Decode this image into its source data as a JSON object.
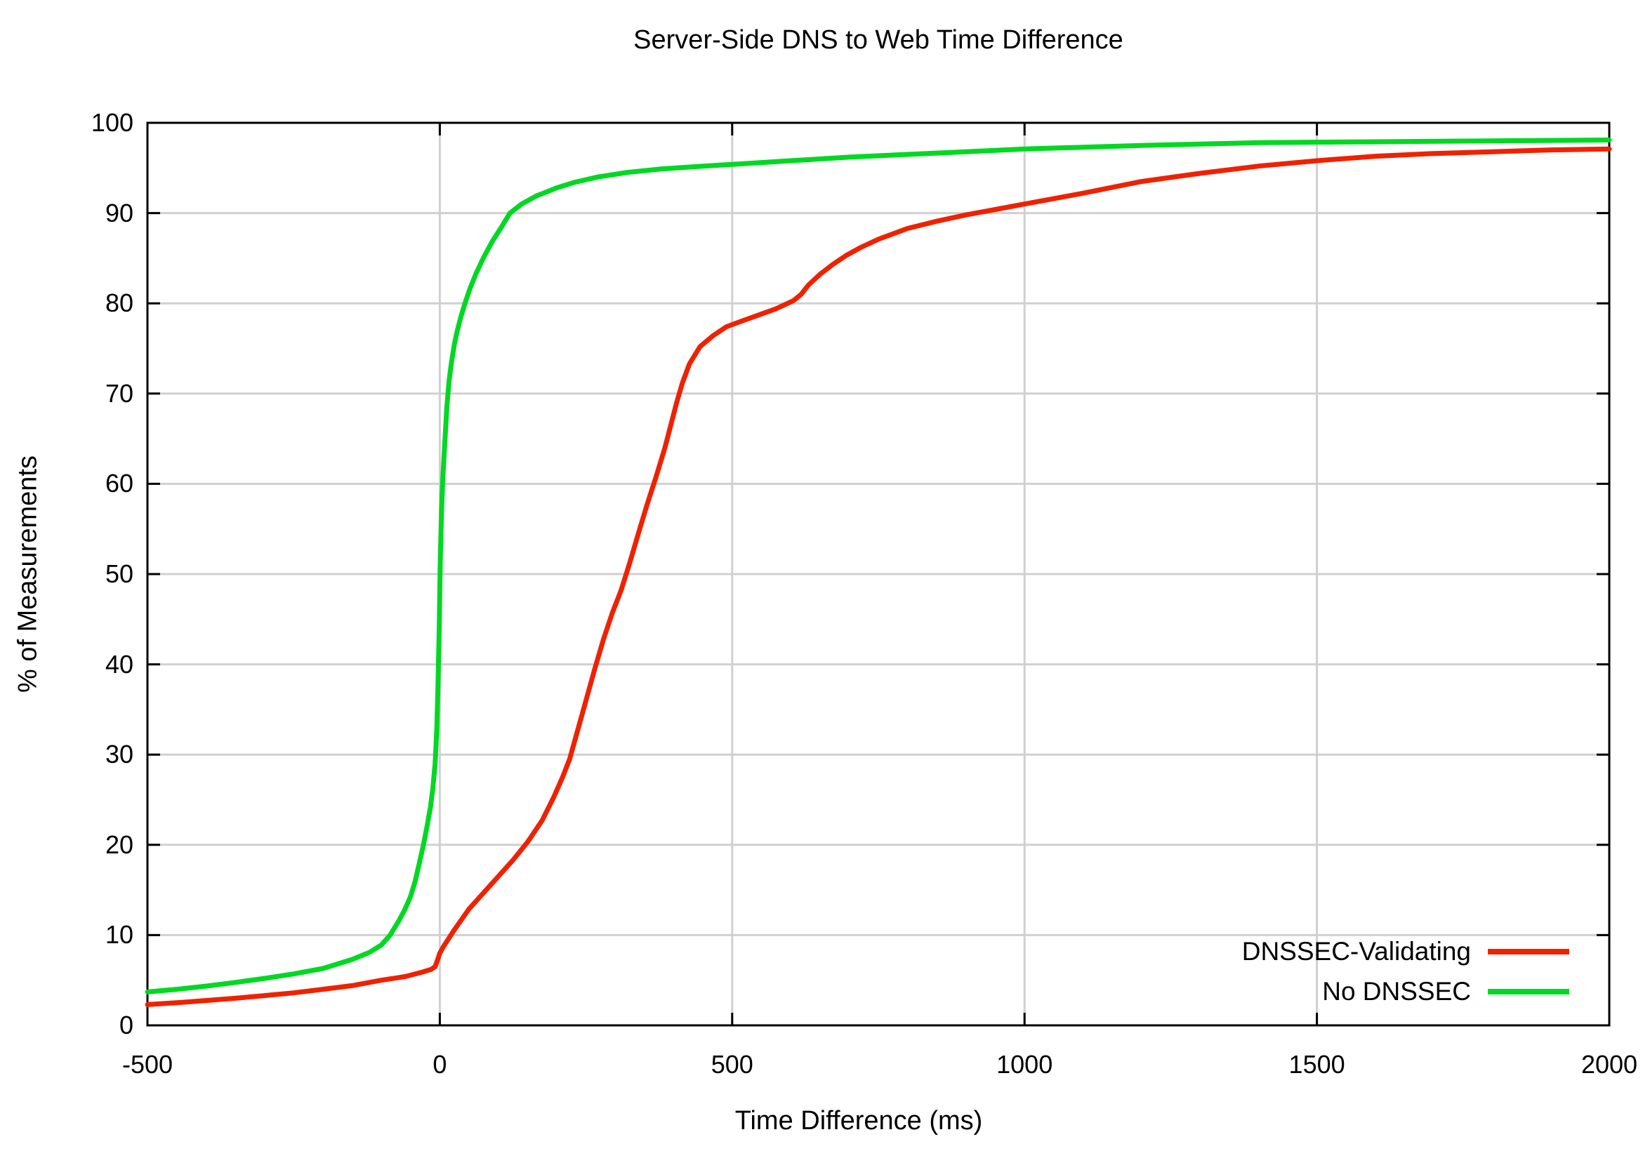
{
  "chart_data": {
    "type": "line",
    "title": "Server-Side DNS to Web Time Difference",
    "xlabel": "Time Difference (ms)",
    "ylabel": "% of Measurements",
    "xlim": [
      -500,
      2000
    ],
    "ylim": [
      0,
      100
    ],
    "x_ticks": [
      -500,
      0,
      500,
      1000,
      1500,
      2000
    ],
    "y_ticks": [
      0,
      10,
      20,
      30,
      40,
      50,
      60,
      70,
      80,
      90,
      100
    ],
    "grid": true,
    "legend_position": "inside-bottom-right",
    "colors": {
      "grid": "#d0d0d0",
      "axis": "#000000",
      "background": "#ffffff"
    },
    "series": [
      {
        "name": "DNSSEC-Validating",
        "color": "#ee2200",
        "points": [
          [
            -500,
            2.3
          ],
          [
            -450,
            2.5
          ],
          [
            -400,
            2.75
          ],
          [
            -350,
            3.0
          ],
          [
            -300,
            3.3
          ],
          [
            -250,
            3.6
          ],
          [
            -200,
            4.0
          ],
          [
            -150,
            4.4
          ],
          [
            -100,
            5.0
          ],
          [
            -60,
            5.4
          ],
          [
            -30,
            5.9
          ],
          [
            -15,
            6.2
          ],
          [
            -8,
            6.5
          ],
          [
            -3,
            7.4
          ],
          [
            0,
            8.0
          ],
          [
            6,
            8.7
          ],
          [
            15,
            9.6
          ],
          [
            25,
            10.6
          ],
          [
            50,
            12.9
          ],
          [
            75,
            14.7
          ],
          [
            100,
            16.5
          ],
          [
            125,
            18.3
          ],
          [
            150,
            20.3
          ],
          [
            175,
            22.7
          ],
          [
            195,
            25.3
          ],
          [
            210,
            27.5
          ],
          [
            222,
            29.5
          ],
          [
            235,
            32.5
          ],
          [
            250,
            36.0
          ],
          [
            265,
            39.5
          ],
          [
            280,
            42.8
          ],
          [
            295,
            45.7
          ],
          [
            310,
            48.2
          ],
          [
            325,
            51.3
          ],
          [
            340,
            54.6
          ],
          [
            355,
            57.8
          ],
          [
            370,
            60.8
          ],
          [
            385,
            64.0
          ],
          [
            395,
            66.5
          ],
          [
            405,
            69.0
          ],
          [
            415,
            71.2
          ],
          [
            427,
            73.3
          ],
          [
            445,
            75.2
          ],
          [
            467,
            76.4
          ],
          [
            490,
            77.4
          ],
          [
            515,
            78.0
          ],
          [
            545,
            78.7
          ],
          [
            575,
            79.4
          ],
          [
            605,
            80.3
          ],
          [
            618,
            81.0
          ],
          [
            630,
            82.0
          ],
          [
            650,
            83.2
          ],
          [
            672,
            84.3
          ],
          [
            695,
            85.3
          ],
          [
            720,
            86.2
          ],
          [
            750,
            87.1
          ],
          [
            800,
            88.3
          ],
          [
            850,
            89.1
          ],
          [
            900,
            89.8
          ],
          [
            950,
            90.4
          ],
          [
            1000,
            91.0
          ],
          [
            1100,
            92.2
          ],
          [
            1200,
            93.5
          ],
          [
            1300,
            94.4
          ],
          [
            1400,
            95.2
          ],
          [
            1500,
            95.8
          ],
          [
            1600,
            96.3
          ],
          [
            1700,
            96.6
          ],
          [
            1800,
            96.8
          ],
          [
            1900,
            97.0
          ],
          [
            2000,
            97.1
          ]
        ]
      },
      {
        "name": "No DNSSEC",
        "color": "#00d822",
        "points": [
          [
            -500,
            3.7
          ],
          [
            -450,
            4.0
          ],
          [
            -400,
            4.35
          ],
          [
            -350,
            4.75
          ],
          [
            -300,
            5.2
          ],
          [
            -250,
            5.7
          ],
          [
            -200,
            6.3
          ],
          [
            -150,
            7.3
          ],
          [
            -120,
            8.1
          ],
          [
            -100,
            8.9
          ],
          [
            -85,
            10.0
          ],
          [
            -70,
            11.6
          ],
          [
            -60,
            12.8
          ],
          [
            -50,
            14.3
          ],
          [
            -42,
            16.0
          ],
          [
            -35,
            18.0
          ],
          [
            -28,
            20.0
          ],
          [
            -22,
            22.0
          ],
          [
            -16,
            24.2
          ],
          [
            -12,
            26.2
          ],
          [
            -8,
            29.0
          ],
          [
            -5,
            33.0
          ],
          [
            -3,
            38.0
          ],
          [
            -1,
            44.0
          ],
          [
            0,
            48.5
          ],
          [
            1,
            52.0
          ],
          [
            3,
            57.0
          ],
          [
            5,
            60.5
          ],
          [
            8,
            64.0
          ],
          [
            12,
            68.5
          ],
          [
            16,
            71.5
          ],
          [
            20,
            73.5
          ],
          [
            25,
            75.5
          ],
          [
            30,
            77.0
          ],
          [
            36,
            78.5
          ],
          [
            43,
            80.0
          ],
          [
            52,
            81.7
          ],
          [
            62,
            83.3
          ],
          [
            75,
            85.1
          ],
          [
            90,
            86.9
          ],
          [
            105,
            88.4
          ],
          [
            120,
            90.0
          ],
          [
            140,
            91.0
          ],
          [
            165,
            91.9
          ],
          [
            200,
            92.8
          ],
          [
            230,
            93.4
          ],
          [
            270,
            94.0
          ],
          [
            320,
            94.5
          ],
          [
            380,
            94.9
          ],
          [
            450,
            95.2
          ],
          [
            500,
            95.4
          ],
          [
            600,
            95.8
          ],
          [
            700,
            96.2
          ],
          [
            800,
            96.5
          ],
          [
            900,
            96.8
          ],
          [
            1000,
            97.1
          ],
          [
            1200,
            97.5
          ],
          [
            1400,
            97.8
          ],
          [
            1600,
            97.9
          ],
          [
            1800,
            98.0
          ],
          [
            2000,
            98.1
          ]
        ]
      }
    ]
  }
}
